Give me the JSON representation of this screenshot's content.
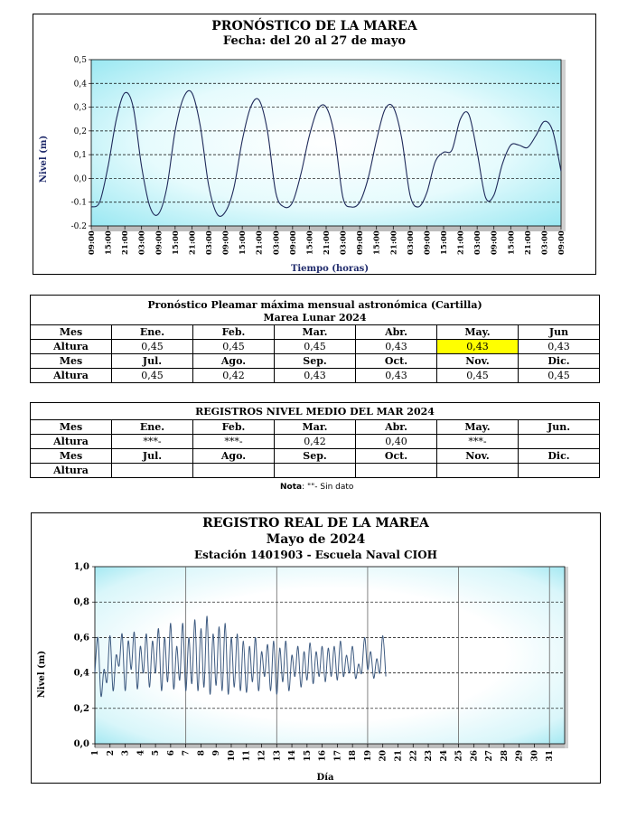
{
  "forecast": {
    "title": "PRONÓSTICO DE LA MAREA",
    "subtitle": "Fecha: del 20 al 27 de mayo",
    "ylabel": "Nivel (m)",
    "xlabel": "Tiempo (horas)"
  },
  "table_forecast": {
    "caption": "Pronóstico Pleamar máxima mensual astronómica (Cartilla)",
    "subcaption": "Marea Lunar 2024",
    "row_label_month": "Mes",
    "row_label_height": "Altura",
    "months1": [
      "Ene.",
      "Feb.",
      "Mar.",
      "Abr.",
      "May.",
      "Jun"
    ],
    "values1": [
      "0,45",
      "0,45",
      "0,45",
      "0,43",
      "0,43",
      "0,43"
    ],
    "months2": [
      "Jul.",
      "Ago.",
      "Sep.",
      "Oct.",
      "Nov.",
      "Dic."
    ],
    "values2": [
      "0,45",
      "0,42",
      "0,43",
      "0,43",
      "0,45",
      "0,45"
    ],
    "highlight_color": "#ffff00"
  },
  "table_records": {
    "caption": "REGISTROS NIVEL MEDIO DEL MAR 2024",
    "row_label_month": "Mes",
    "row_label_height": "Altura",
    "months1": [
      "Ene.",
      "Feb.",
      "Mar.",
      "Abr.",
      "May.",
      "Jun."
    ],
    "values1": [
      "***-",
      "***-",
      "0,42",
      "0,40",
      "***-",
      ""
    ],
    "months2": [
      "Jul.",
      "Ago.",
      "Sep.",
      "Oct.",
      "Nov.",
      "Dic."
    ],
    "values2": [
      "",
      "",
      "",
      "",
      "",
      ""
    ],
    "note_label": "Nota",
    "note_text": ": \"\"- Sin dato"
  },
  "actual": {
    "title": "REGISTRO  REAL DE LA  MAREA",
    "subtitle": "Mayo de 2024",
    "station": "Estación 1401903 - Escuela Naval CIOH",
    "ylabel": "Nivel (m)",
    "xlabel": "Día"
  },
  "chart_data": [
    {
      "type": "line",
      "title": "PRONÓSTICO DE LA MAREA",
      "subtitle": "Fecha: del 20 al 27 de mayo",
      "xlabel": "Tiempo (horas)",
      "ylabel": "Nivel (m)",
      "ylim": [
        -0.2,
        0.5
      ],
      "yticks": [
        "-0.2",
        "-0.1",
        "0,0",
        "0,1",
        "0,2",
        "0,3",
        "0,4",
        "0,5"
      ],
      "xtick_labels": [
        "09:00",
        "15:00",
        "21:00",
        "03:00",
        "09:00",
        "15:00",
        "21:00",
        "03:00",
        "09:00",
        "15:00",
        "21:00",
        "03:00",
        "09:00",
        "15:00",
        "21:00",
        "03:00",
        "09:00",
        "15:00",
        "21:00",
        "03:00",
        "09:00",
        "15:00",
        "21:00",
        "03:00",
        "09:00",
        "15:00",
        "21:00",
        "03:00",
        "09:00"
      ],
      "x_hours_from_start": [
        0,
        3,
        6,
        9,
        12,
        15,
        18,
        21,
        24,
        27,
        30,
        33,
        36,
        39,
        42,
        45,
        48,
        51,
        54,
        57,
        60,
        63,
        66,
        69,
        72,
        75,
        78,
        81,
        84,
        87,
        90,
        93,
        96,
        99,
        102,
        105,
        108,
        111,
        114,
        117,
        120,
        123,
        126,
        129,
        132,
        135,
        138,
        141,
        144,
        147,
        150,
        153,
        156,
        159,
        162,
        165,
        168
      ],
      "series": [
        {
          "values": [
            -0.12,
            -0.1,
            0.05,
            0.25,
            0.36,
            0.3,
            0.05,
            -0.12,
            -0.15,
            -0.04,
            0.2,
            0.34,
            0.36,
            0.22,
            -0.03,
            -0.15,
            -0.14,
            -0.04,
            0.16,
            0.3,
            0.33,
            0.2,
            -0.06,
            -0.12,
            -0.1,
            0.02,
            0.18,
            0.29,
            0.3,
            0.18,
            -0.08,
            -0.12,
            -0.1,
            0.0,
            0.16,
            0.29,
            0.3,
            0.17,
            -0.07,
            -0.12,
            -0.06,
            0.07,
            0.11,
            0.12,
            0.25,
            0.27,
            0.11,
            -0.08,
            -0.07,
            0.06,
            0.14,
            0.14,
            0.13,
            0.18,
            0.24,
            0.2,
            0.03
          ]
        }
      ],
      "grid": "horizontal dashed"
    },
    {
      "type": "line",
      "title": "REGISTRO  REAL DE LA  MAREA",
      "subtitle": "Mayo de 2024",
      "xlabel": "Día",
      "ylabel": "Nivel (m)",
      "ylim": [
        0.0,
        1.0
      ],
      "yticks": [
        "0,0",
        "0,2",
        "0,4",
        "0,6",
        "0,8",
        "1,0"
      ],
      "xlim": [
        1,
        32
      ],
      "xticks": [
        "1",
        "2",
        "3",
        "4",
        "5",
        "6",
        "7",
        "8",
        "9",
        "10",
        "11",
        "12",
        "13",
        "14",
        "15",
        "16",
        "17",
        "18",
        "19",
        "20",
        "21",
        "22",
        "23",
        "24",
        "25",
        "26",
        "27",
        "28",
        "29",
        "30",
        "31"
      ],
      "series": [
        {
          "x": [
            1.0,
            1.2,
            1.4,
            1.6,
            1.8,
            2.0,
            2.2,
            2.4,
            2.6,
            2.8,
            3.0,
            3.2,
            3.4,
            3.6,
            3.8,
            4.0,
            4.2,
            4.4,
            4.6,
            4.8,
            5.0,
            5.2,
            5.4,
            5.6,
            5.8,
            6.0,
            6.2,
            6.4,
            6.6,
            6.8,
            7.0,
            7.2,
            7.4,
            7.6,
            7.8,
            8.0,
            8.2,
            8.4,
            8.6,
            8.8,
            9.0,
            9.2,
            9.4,
            9.6,
            9.8,
            10.0,
            10.2,
            10.4,
            10.6,
            10.8,
            11.0,
            11.2,
            11.4,
            11.6,
            11.8,
            12.0,
            12.2,
            12.4,
            12.6,
            12.8,
            13.0,
            13.2,
            13.4,
            13.6,
            13.8,
            14.0,
            14.2,
            14.4,
            14.6,
            14.8,
            15.0,
            15.2,
            15.4,
            15.6,
            15.8,
            16.0,
            16.2,
            16.4,
            16.6,
            16.8,
            17.0,
            17.2,
            17.4,
            17.6,
            17.8,
            18.0,
            18.2,
            18.4,
            18.6,
            18.8,
            19.0,
            19.2,
            19.4,
            19.6,
            19.8,
            20.0,
            20.2
          ],
          "values": [
            0.4,
            0.6,
            0.27,
            0.42,
            0.35,
            0.61,
            0.3,
            0.5,
            0.44,
            0.62,
            0.3,
            0.58,
            0.42,
            0.63,
            0.31,
            0.55,
            0.4,
            0.62,
            0.32,
            0.58,
            0.4,
            0.65,
            0.3,
            0.6,
            0.35,
            0.68,
            0.31,
            0.55,
            0.36,
            0.68,
            0.3,
            0.6,
            0.34,
            0.7,
            0.3,
            0.65,
            0.32,
            0.72,
            0.28,
            0.62,
            0.33,
            0.66,
            0.3,
            0.68,
            0.28,
            0.6,
            0.32,
            0.62,
            0.3,
            0.58,
            0.29,
            0.55,
            0.35,
            0.6,
            0.3,
            0.52,
            0.38,
            0.56,
            0.3,
            0.58,
            0.28,
            0.54,
            0.35,
            0.58,
            0.3,
            0.5,
            0.38,
            0.55,
            0.32,
            0.52,
            0.36,
            0.57,
            0.34,
            0.52,
            0.38,
            0.55,
            0.35,
            0.54,
            0.38,
            0.55,
            0.36,
            0.58,
            0.38,
            0.5,
            0.4,
            0.55,
            0.37,
            0.45,
            0.4,
            0.6,
            0.42,
            0.52,
            0.37,
            0.48,
            0.4,
            0.61,
            0.38
          ]
        }
      ],
      "grid": "horizontal dashed, vertical solid every 6 days"
    }
  ]
}
